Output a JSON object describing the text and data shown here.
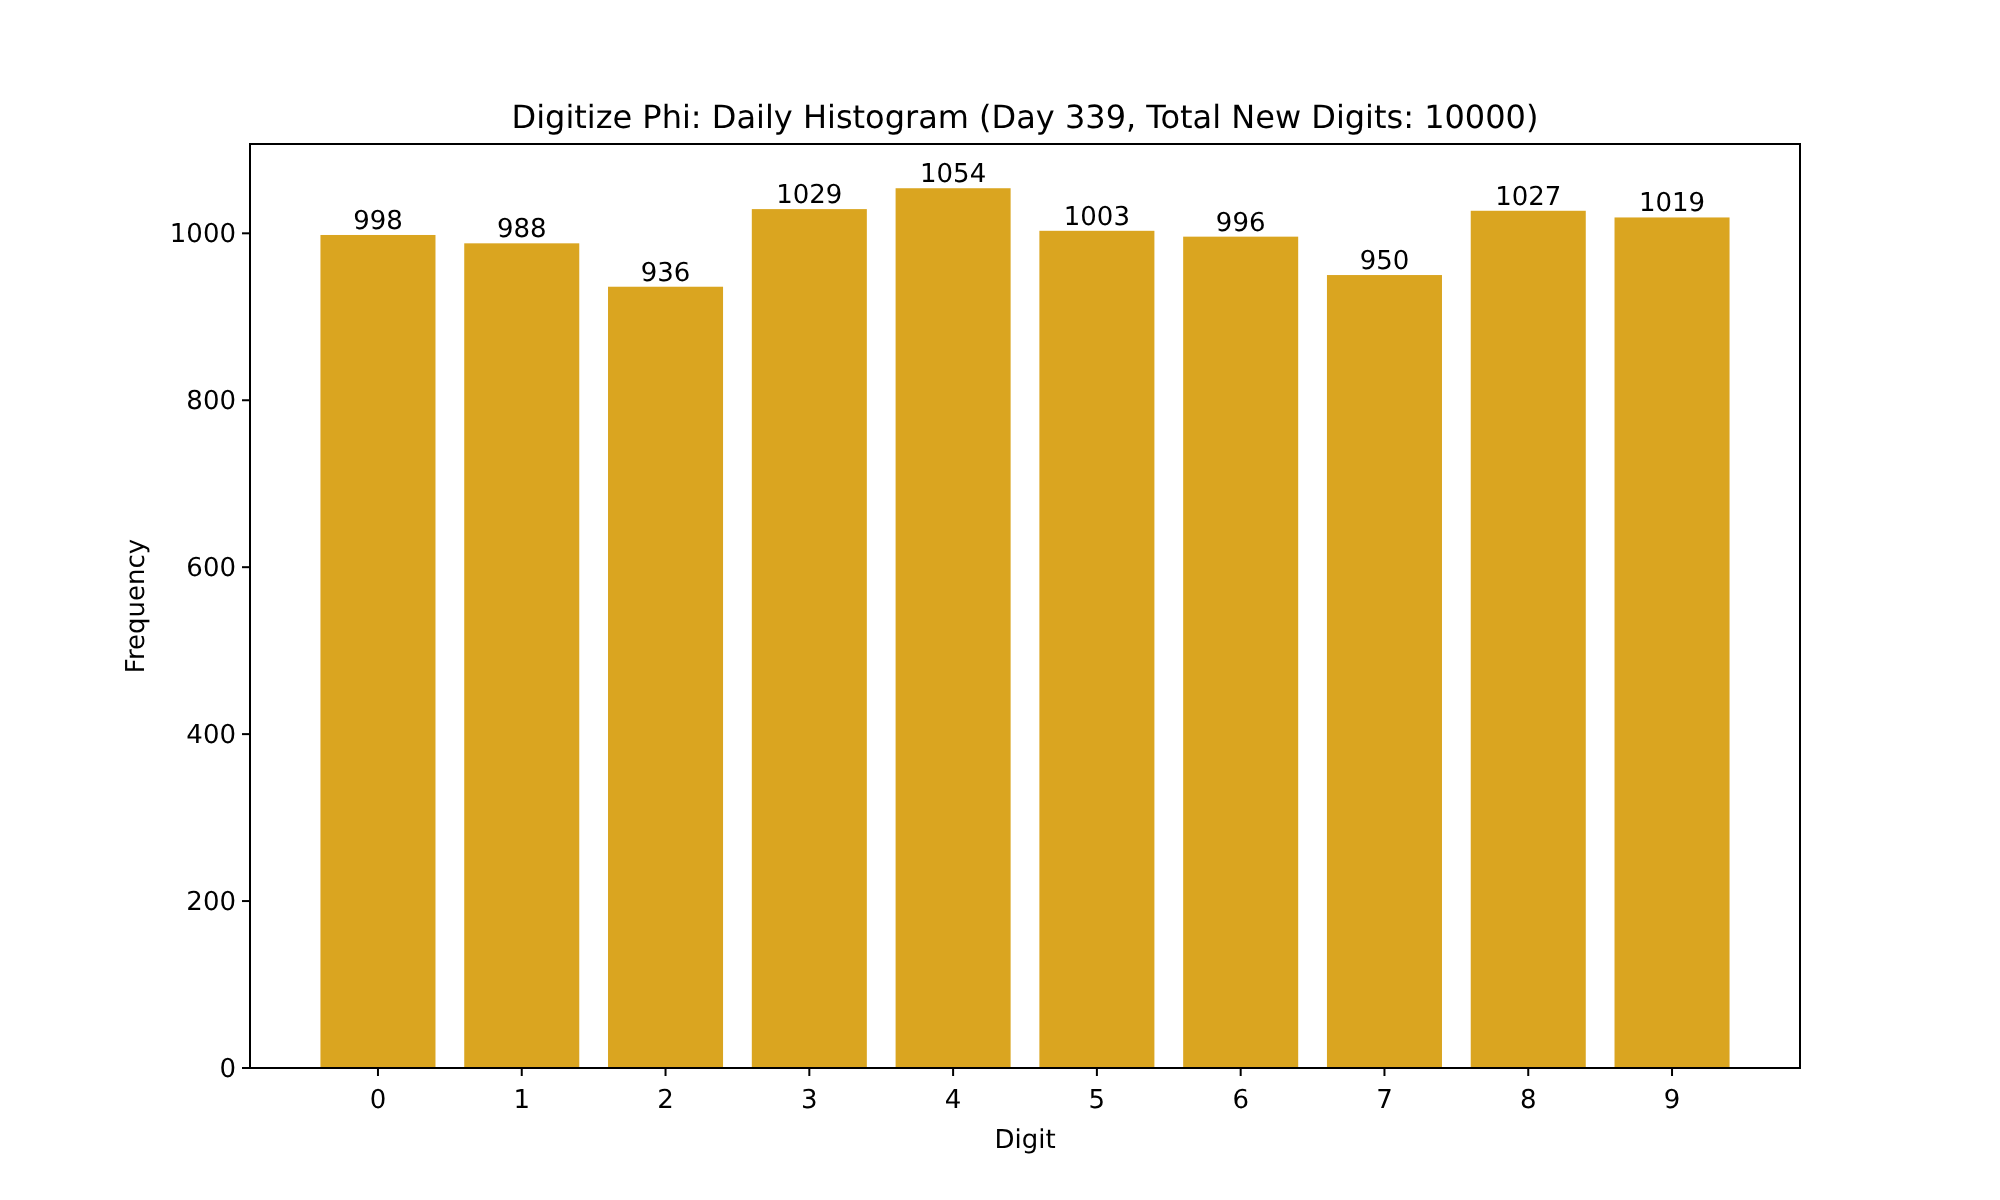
{
  "chart_data": {
    "type": "bar",
    "title": "Digitize Phi: Daily Histogram (Day 339, Total New Digits: 10000)",
    "xlabel": "Digit",
    "ylabel": "Frequency",
    "categories": [
      "0",
      "1",
      "2",
      "3",
      "4",
      "5",
      "6",
      "7",
      "8",
      "9"
    ],
    "values": [
      998,
      988,
      936,
      1029,
      1054,
      1003,
      996,
      950,
      1027,
      1019
    ],
    "color": "#daa520",
    "ylim": [
      0,
      1107
    ],
    "yticks": [
      0,
      200,
      400,
      600,
      800,
      1000
    ],
    "data_labels": true,
    "grid": false
  }
}
